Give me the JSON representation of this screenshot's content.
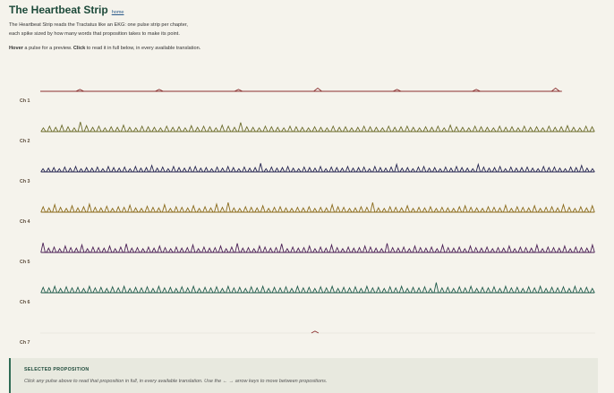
{
  "header": {
    "title": "The Heartbeat Strip",
    "home_link": "home",
    "description_line1": "The Heartbeat Strip reads the Tractatus like an EKG: one pulse strip per chapter,",
    "description_line2": "each spike sized by how many words that proposition takes to make its point.",
    "instructions": {
      "hover_word": "Hover",
      "hover_rest": " a pulse for a preview. ",
      "click_word": "Click",
      "click_rest": " to read it in full below, in every available translation."
    }
  },
  "colors": {
    "background": "#f5f3ec",
    "title": "#1d4a3a",
    "panel_background": "#e8e9df",
    "panel_accent": "#2f6b55"
  },
  "chapters": [
    {
      "label": "Ch 1",
      "color": "#8a2f2f",
      "pulses": [
        0.18,
        0.18,
        0.18,
        0.3,
        0.18,
        0.18,
        0.3
      ]
    },
    {
      "label": "Ch 2",
      "color": "#6b6b2a",
      "pulses": [
        0.35,
        0.5,
        0.4,
        0.6,
        0.45,
        0.35,
        0.9,
        0.55,
        0.4,
        0.5,
        0.35,
        0.45,
        0.4,
        0.6,
        0.4,
        0.35,
        0.5,
        0.45,
        0.4,
        0.35,
        0.5,
        0.4,
        0.45,
        0.35,
        0.55,
        0.4,
        0.5,
        0.45,
        0.35,
        0.6,
        0.5,
        0.4,
        0.85,
        0.45,
        0.4,
        0.35,
        0.5,
        0.45,
        0.4,
        0.35,
        0.5,
        0.45,
        0.4,
        0.35,
        0.45,
        0.4,
        0.35,
        0.5,
        0.4,
        0.45,
        0.35,
        0.4,
        0.5,
        0.45,
        0.4,
        0.35,
        0.5,
        0.4,
        0.45,
        0.5,
        0.4,
        0.35,
        0.45,
        0.4,
        0.5,
        0.35,
        0.6,
        0.45,
        0.4,
        0.35,
        0.5,
        0.45,
        0.4,
        0.35,
        0.5,
        0.4,
        0.45,
        0.35,
        0.5,
        0.4,
        0.45,
        0.35,
        0.5,
        0.4,
        0.45,
        0.55,
        0.4,
        0.35,
        0.5,
        0.45
      ]
    },
    {
      "label": "Ch 3",
      "color": "#23234f",
      "pulses": [
        0.3,
        0.35,
        0.4,
        0.3,
        0.45,
        0.35,
        0.5,
        0.3,
        0.4,
        0.35,
        0.45,
        0.3,
        0.5,
        0.4,
        0.35,
        0.45,
        0.3,
        0.5,
        0.35,
        0.4,
        0.6,
        0.35,
        0.45,
        0.3,
        0.5,
        0.4,
        0.35,
        0.45,
        0.5,
        0.35,
        0.4,
        0.3,
        0.45,
        0.35,
        0.5,
        0.4,
        0.3,
        0.45,
        0.35,
        0.4,
        0.8,
        0.3,
        0.45,
        0.35,
        0.4,
        0.5,
        0.35,
        0.3,
        0.45,
        0.4,
        0.35,
        0.5,
        0.3,
        0.45,
        0.4,
        0.35,
        0.5,
        0.35,
        0.4,
        0.45,
        0.3,
        0.5,
        0.4,
        0.35,
        0.45,
        0.7,
        0.35,
        0.4,
        0.3,
        0.45,
        0.5,
        0.35,
        0.4,
        0.3,
        0.45,
        0.35,
        0.5,
        0.4,
        0.35,
        0.3,
        0.7,
        0.45,
        0.35,
        0.4,
        0.5,
        0.3,
        0.45,
        0.35,
        0.4,
        0.45,
        0.35,
        0.3,
        0.5,
        0.4,
        0.45,
        0.35,
        0.3,
        0.45,
        0.4,
        0.6,
        0.35,
        0.3
      ]
    },
    {
      "label": "Ch 4",
      "color": "#8a6a1a",
      "pulses": [
        0.5,
        0.4,
        0.7,
        0.45,
        0.35,
        0.6,
        0.4,
        0.5,
        0.75,
        0.45,
        0.4,
        0.55,
        0.35,
        0.5,
        0.45,
        0.65,
        0.4,
        0.35,
        0.55,
        0.45,
        0.4,
        0.7,
        0.35,
        0.5,
        0.45,
        0.4,
        0.6,
        0.35,
        0.5,
        0.4,
        0.75,
        0.45,
        0.9,
        0.4,
        0.35,
        0.5,
        0.45,
        0.4,
        0.6,
        0.35,
        0.45,
        0.5,
        0.4,
        0.35,
        0.45,
        0.4,
        0.5,
        0.35,
        0.45,
        0.4,
        0.7,
        0.5,
        0.45,
        0.35,
        0.4,
        0.5,
        0.45,
        0.9,
        0.4,
        0.35,
        0.5,
        0.45,
        0.4,
        0.6,
        0.35,
        0.45,
        0.4,
        0.5,
        0.35,
        0.45,
        0.4,
        0.35,
        0.5,
        0.6,
        0.45,
        0.4,
        0.35,
        0.5,
        0.45,
        0.4,
        0.65,
        0.35,
        0.5,
        0.45,
        0.4,
        0.6,
        0.35,
        0.45,
        0.5,
        0.4,
        0.7,
        0.45,
        0.35,
        0.5,
        0.4,
        0.6
      ]
    },
    {
      "label": "Ch 5",
      "color": "#4a1f55",
      "pulses": [
        0.9,
        0.4,
        0.5,
        0.35,
        0.6,
        0.45,
        0.4,
        0.7,
        0.35,
        0.5,
        0.45,
        0.4,
        0.6,
        0.35,
        0.5,
        0.8,
        0.4,
        0.45,
        0.35,
        0.5,
        0.4,
        0.6,
        0.45,
        0.35,
        0.5,
        0.4,
        0.45,
        0.7,
        0.35,
        0.5,
        0.4,
        0.45,
        0.6,
        0.35,
        0.5,
        0.85,
        0.4,
        0.45,
        0.35,
        0.6,
        0.5,
        0.4,
        0.45,
        0.8,
        0.35,
        0.5,
        0.4,
        0.45,
        0.6,
        0.35,
        0.5,
        0.4,
        0.7,
        0.45,
        0.35,
        0.5,
        0.4,
        0.45,
        0.6,
        0.5,
        0.4,
        0.35,
        0.85,
        0.45,
        0.4,
        0.5,
        0.35,
        0.6,
        0.45,
        0.4,
        0.5,
        0.35,
        0.7,
        0.45,
        0.4,
        0.5,
        0.35,
        0.6,
        0.45,
        0.4,
        0.5,
        0.35,
        0.45,
        0.4,
        0.6,
        0.35,
        0.5,
        0.45,
        0.4,
        0.7,
        0.35,
        0.5,
        0.45,
        0.4,
        0.6,
        0.35,
        0.5,
        0.45,
        0.4,
        0.7
      ]
    },
    {
      "label": "Ch 6",
      "color": "#1f5a4a",
      "pulses": [
        0.5,
        0.45,
        0.6,
        0.4,
        0.55,
        0.45,
        0.5,
        0.4,
        0.6,
        0.45,
        0.5,
        0.4,
        0.55,
        0.45,
        0.6,
        0.4,
        0.5,
        0.45,
        0.55,
        0.4,
        0.6,
        0.45,
        0.5,
        0.4,
        0.55,
        0.45,
        0.6,
        0.4,
        0.5,
        0.45,
        0.55,
        0.4,
        0.6,
        0.45,
        0.5,
        0.4,
        0.55,
        0.45,
        0.6,
        0.4,
        0.5,
        0.45,
        0.55,
        0.4,
        0.6,
        0.45,
        0.5,
        0.4,
        0.55,
        0.45,
        0.6,
        0.4,
        0.5,
        0.45,
        0.55,
        0.4,
        0.6,
        0.45,
        0.5,
        0.4,
        0.55,
        0.45,
        0.6,
        0.4,
        0.5,
        0.45,
        0.55,
        0.4,
        0.95,
        0.45,
        0.5,
        0.4,
        0.55,
        0.45,
        0.6,
        0.4,
        0.5,
        0.45,
        0.55,
        0.4,
        0.6,
        0.45,
        0.5,
        0.4,
        0.55,
        0.45,
        0.6,
        0.4,
        0.5,
        0.45,
        0.55,
        0.4,
        0.6,
        0.45,
        0.5,
        0.4
      ]
    },
    {
      "label": "Ch 7",
      "color": "#8a2f2f",
      "pulses": [
        0.18
      ]
    }
  ],
  "panel": {
    "heading": "SELECTED PROPOSITION",
    "hint": "Click any pulse above to read that proposition in full, in every available translation. Use the ← → arrow keys to move between propositions."
  }
}
